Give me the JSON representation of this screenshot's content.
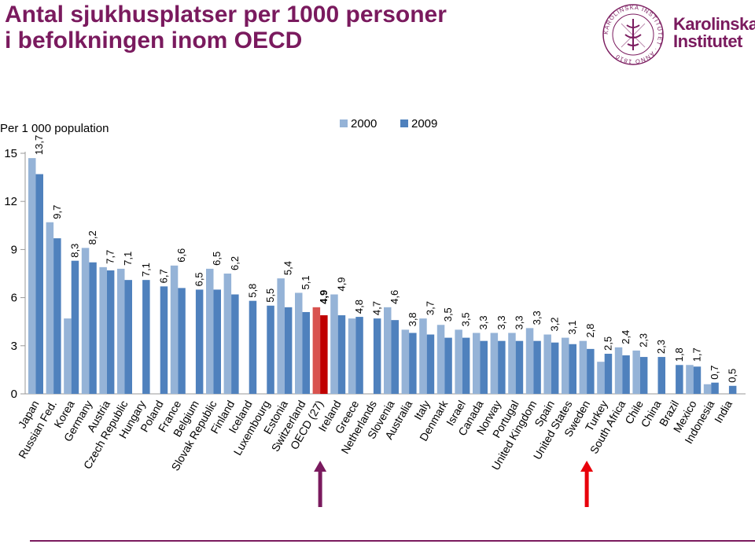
{
  "title_line1": "Antal sjukhusplatser per 1000 personer",
  "title_line2": "i befolkningen inom OECD",
  "logo": {
    "line1": "Karolinska",
    "line2": "Institutet",
    "seal_text": "KAROLINSKA INSTITUTET · ANNO 1810"
  },
  "colors": {
    "brand": "#7a1a5e",
    "series2000": "#95b3d7",
    "series2009": "#4f81bd",
    "highlight2000": "#d9534f",
    "highlight2009": "#c00000",
    "arrow_purple": "#7a1a5e",
    "arrow_red": "#e8000b"
  },
  "chart_data": {
    "type": "bar",
    "ylabel": "Per 1 000 population",
    "ylim": [
      0,
      15
    ],
    "yticks": [
      0,
      3,
      6,
      9,
      12,
      15
    ],
    "legend_position": "top-center",
    "grid": false,
    "highlight_category": "OECD (27)",
    "categories": [
      "Japan",
      "Russian Fed.",
      "Korea",
      "Germany",
      "Austria",
      "Czech Republic",
      "Hungary",
      "Poland",
      "France",
      "Belgium",
      "Slovak Republic",
      "Finland",
      "Iceland",
      "Luxembourg",
      "Estonia",
      "Switzerland",
      "OECD (27)",
      "Ireland",
      "Greece",
      "Netherlands",
      "Slovenia",
      "Australia",
      "Italy",
      "Denmark",
      "Israel",
      "Canada",
      "Norway",
      "Portugal",
      "United Kingdom",
      "Spain",
      "United States",
      "Sweden",
      "Turkey",
      "South Africa",
      "Chile",
      "China",
      "Brazil",
      "Mexico",
      "Indonesia",
      "India"
    ],
    "series": [
      {
        "name": "2000",
        "values": [
          14.7,
          10.7,
          4.7,
          9.1,
          7.9,
          7.8,
          null,
          null,
          8.0,
          null,
          7.8,
          7.5,
          null,
          null,
          7.2,
          6.3,
          5.4,
          6.2,
          4.7,
          null,
          5.4,
          4.0,
          4.7,
          4.3,
          4.0,
          3.8,
          3.8,
          3.8,
          4.1,
          3.7,
          3.5,
          3.3,
          2.0,
          2.9,
          2.7,
          null,
          null,
          1.8,
          0.6,
          null
        ]
      },
      {
        "name": "2009",
        "values": [
          13.7,
          9.7,
          8.3,
          8.2,
          7.7,
          7.1,
          7.1,
          6.7,
          6.6,
          6.5,
          6.5,
          6.2,
          5.8,
          5.5,
          5.4,
          5.1,
          4.9,
          4.9,
          4.8,
          4.7,
          4.6,
          3.8,
          3.7,
          3.5,
          3.5,
          3.3,
          3.3,
          3.3,
          3.3,
          3.2,
          3.1,
          2.8,
          2.5,
          2.4,
          2.3,
          2.3,
          1.8,
          1.7,
          0.7,
          0.5
        ]
      }
    ],
    "data_labels": [
      "13,7",
      "9,7",
      "8,3",
      "8,2",
      "7,7",
      "7,1",
      "7,1",
      "6,7",
      "6,6",
      "6,5",
      "6,5",
      "6,2",
      "5,8",
      "5,5",
      "5,4",
      "5,1",
      "4,9",
      "4,9",
      "4,8",
      "4,7",
      "4,6",
      "3,8",
      "3,7",
      "3,5",
      "3,5",
      "3,3",
      "3,3",
      "3,3",
      "3,3",
      "3,2",
      "3,1",
      "2,8",
      "2,5",
      "2,4",
      "2,3",
      "2,3",
      "1,8",
      "1,7",
      "0,7",
      "0,5"
    ]
  },
  "annotations": {
    "arrow_left_target": "OECD (27)",
    "arrow_right_target": "Sweden"
  }
}
